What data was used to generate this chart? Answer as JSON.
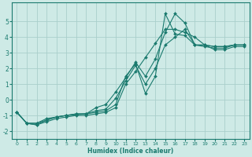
{
  "xlabel": "Humidex (Indice chaleur)",
  "background_color": "#ceeae6",
  "grid_color": "#aacfcb",
  "line_color": "#1a7a6e",
  "xlim": [
    -0.5,
    23.5
  ],
  "ylim": [
    -2.5,
    6.2
  ],
  "yticks": [
    -2,
    -1,
    0,
    1,
    2,
    3,
    4,
    5
  ],
  "xticks": [
    0,
    1,
    2,
    3,
    4,
    5,
    6,
    7,
    8,
    9,
    10,
    11,
    12,
    13,
    14,
    15,
    16,
    17,
    18,
    19,
    20,
    21,
    22,
    23
  ],
  "series": [
    {
      "x": [
        0,
        1,
        2,
        3,
        4,
        5,
        6,
        7,
        8,
        9,
        10,
        11,
        12,
        13,
        14,
        15,
        16,
        17,
        18,
        19,
        20,
        21,
        22,
        23
      ],
      "y": [
        -0.8,
        -1.5,
        -1.5,
        -1.2,
        -1.1,
        -1.0,
        -0.9,
        -0.9,
        -0.8,
        -0.7,
        -0.3,
        1.5,
        2.3,
        0.4,
        1.5,
        5.5,
        4.2,
        4.1,
        3.5,
        3.5,
        3.4,
        3.4,
        3.5,
        3.5
      ]
    },
    {
      "x": [
        0,
        1,
        2,
        3,
        4,
        5,
        6,
        7,
        8,
        9,
        10,
        11,
        12,
        13,
        14,
        15,
        16,
        17,
        18,
        19,
        20,
        21,
        22,
        23
      ],
      "y": [
        -0.8,
        -1.5,
        -1.6,
        -1.3,
        -1.1,
        -1.0,
        -0.95,
        -0.9,
        -0.5,
        -0.3,
        0.5,
        1.4,
        2.4,
        1.5,
        2.6,
        4.3,
        5.5,
        4.9,
        3.5,
        3.5,
        3.4,
        3.4,
        3.5,
        3.5
      ]
    },
    {
      "x": [
        0,
        1,
        2,
        3,
        4,
        5,
        6,
        7,
        8,
        9,
        10,
        11,
        12,
        13,
        14,
        15,
        16,
        17,
        18,
        19,
        20,
        21,
        22,
        23
      ],
      "y": [
        -0.8,
        -1.5,
        -1.6,
        -1.4,
        -1.2,
        -1.1,
        -1.0,
        -1.0,
        -0.9,
        -0.8,
        -0.5,
        1.0,
        1.8,
        2.7,
        3.6,
        4.5,
        4.5,
        4.3,
        4.0,
        3.5,
        3.2,
        3.2,
        3.4,
        3.4
      ]
    },
    {
      "x": [
        0,
        1,
        2,
        3,
        4,
        5,
        6,
        7,
        8,
        9,
        10,
        11,
        12,
        13,
        14,
        15,
        16,
        17,
        18,
        19,
        20,
        21,
        22,
        23
      ],
      "y": [
        -0.8,
        -1.5,
        -1.5,
        -1.3,
        -1.1,
        -1.0,
        -0.9,
        -0.9,
        -0.7,
        -0.6,
        0.1,
        1.2,
        2.2,
        1.0,
        2.0,
        3.5,
        4.0,
        4.5,
        3.5,
        3.4,
        3.3,
        3.3,
        3.5,
        3.5
      ]
    }
  ]
}
